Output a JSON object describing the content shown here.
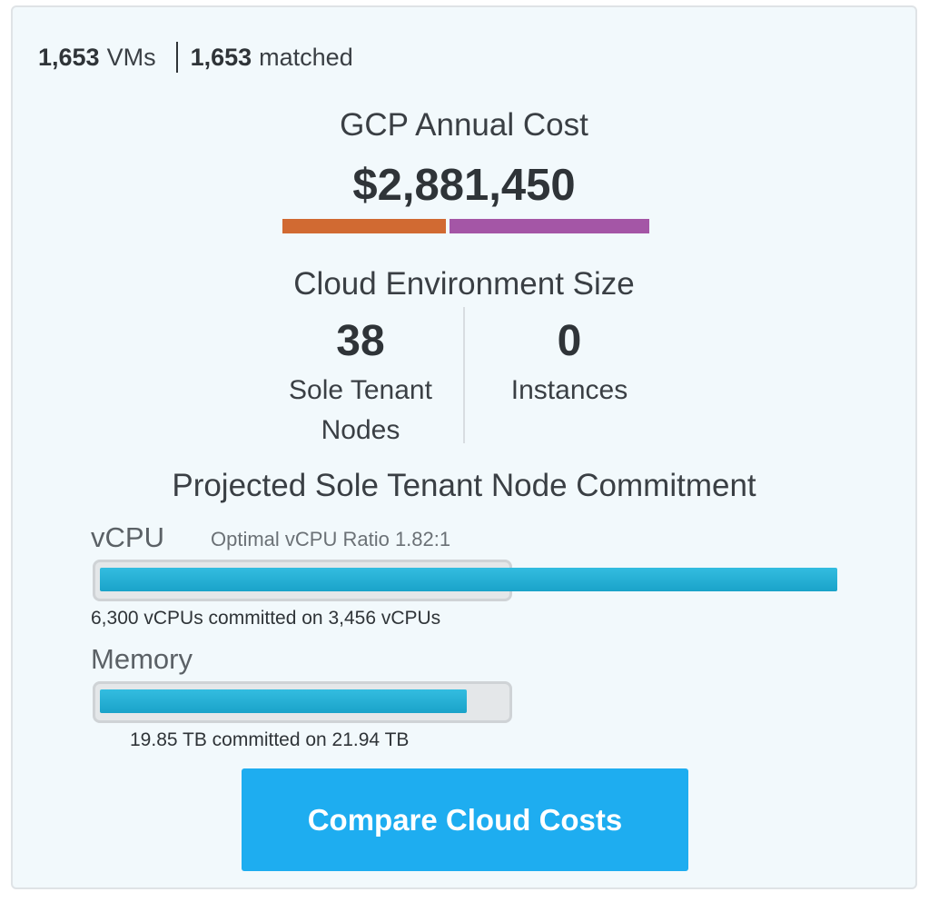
{
  "counts": {
    "vm_count": "1,653",
    "vm_label": "VMs",
    "matched_count": "1,653",
    "matched_label": "matched"
  },
  "cost": {
    "title": "GCP Annual Cost",
    "value": "$2,881,450",
    "segment_colors": [
      "#d16a32",
      "#a456a6"
    ]
  },
  "environment": {
    "title": "Cloud Environment Size",
    "sole_tenant_nodes": {
      "value": "38",
      "label_line1": "Sole Tenant",
      "label_line2": "Nodes"
    },
    "instances": {
      "value": "0",
      "label": "Instances"
    }
  },
  "commitment": {
    "title": "Projected Sole Tenant Node Commitment",
    "vcpu": {
      "label": "vCPU",
      "ratio_text": "Optimal vCPU Ratio 1.82:1",
      "fill_fraction": 1.82,
      "caption": "6,300 vCPUs committed on 3,456 vCPUs"
    },
    "memory": {
      "label": "Memory",
      "fill_fraction": 0.905,
      "caption": "19.85 TB committed on 21.94 TB"
    }
  },
  "actions": {
    "compare_label": "Compare Cloud Costs"
  },
  "colors": {
    "accent": "#1eadf0",
    "bar_fill": "#1aa3c9"
  }
}
